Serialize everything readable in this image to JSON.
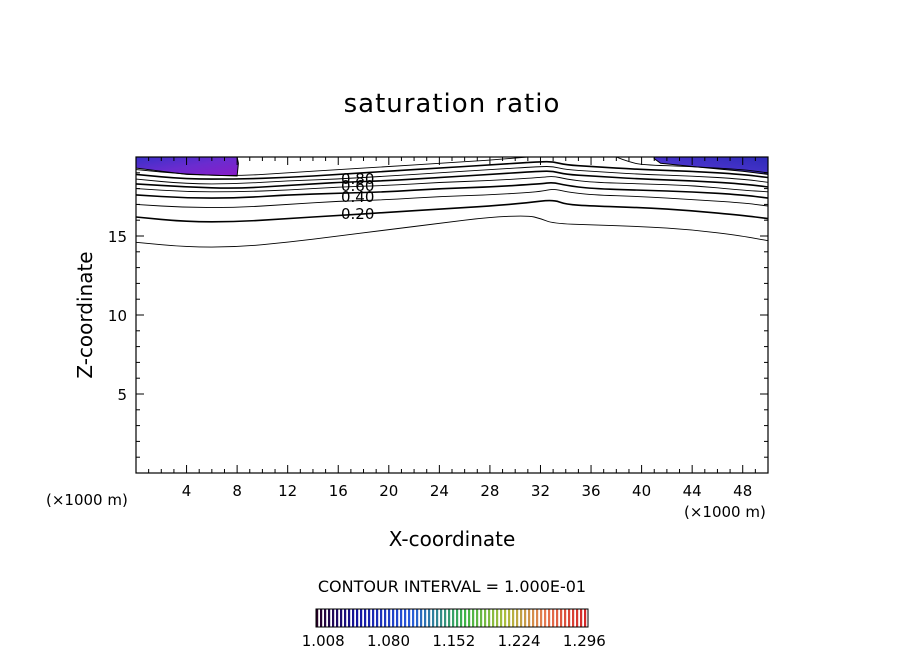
{
  "chart_data": {
    "type": "contour",
    "title": "saturation ratio",
    "xlabel": "X-coordinate",
    "ylabel": "Z-coordinate",
    "x_unit_left": "(×1000 m)",
    "x_unit_right": "(×1000 m)",
    "xlim": [
      0,
      50
    ],
    "ylim": [
      0,
      20
    ],
    "x_ticks": [
      4,
      8,
      12,
      16,
      20,
      24,
      28,
      32,
      36,
      40,
      44,
      48
    ],
    "y_ticks": [
      5,
      10,
      15
    ],
    "contour_interval_text": "CONTOUR INTERVAL = 1.000E-01",
    "contour_labels": [
      "0.80",
      "0.60",
      "0.40",
      "0.20"
    ],
    "contours": [
      {
        "level": 0.1,
        "points": [
          [
            0,
            14.6
          ],
          [
            4,
            14.3
          ],
          [
            8,
            14.3
          ],
          [
            12,
            14.6
          ],
          [
            16,
            15.0
          ],
          [
            20,
            15.4
          ],
          [
            24,
            15.8
          ],
          [
            28,
            16.2
          ],
          [
            31,
            16.3
          ],
          [
            32,
            16.1
          ],
          [
            33,
            15.8
          ],
          [
            36,
            15.7
          ],
          [
            40,
            15.6
          ],
          [
            44,
            15.4
          ],
          [
            48,
            15.0
          ],
          [
            50,
            14.7
          ]
        ]
      },
      {
        "level": 0.2,
        "points": [
          [
            0,
            16.2
          ],
          [
            4,
            15.9
          ],
          [
            8,
            15.9
          ],
          [
            12,
            16.1
          ],
          [
            16,
            16.3
          ],
          [
            20,
            16.5
          ],
          [
            24,
            16.7
          ],
          [
            28,
            16.9
          ],
          [
            31,
            17.1
          ],
          [
            33,
            17.3
          ],
          [
            34,
            17.0
          ],
          [
            36,
            16.9
          ],
          [
            40,
            16.8
          ],
          [
            44,
            16.6
          ],
          [
            48,
            16.3
          ],
          [
            50,
            16.1
          ]
        ]
      },
      {
        "level": 0.3,
        "points": [
          [
            0,
            17.0
          ],
          [
            4,
            16.8
          ],
          [
            8,
            16.8
          ],
          [
            12,
            17.0
          ],
          [
            16,
            17.2
          ],
          [
            20,
            17.3
          ],
          [
            24,
            17.5
          ],
          [
            28,
            17.6
          ],
          [
            32,
            17.8
          ],
          [
            33,
            18.0
          ],
          [
            34,
            17.8
          ],
          [
            36,
            17.6
          ],
          [
            40,
            17.5
          ],
          [
            44,
            17.3
          ],
          [
            48,
            17.1
          ],
          [
            50,
            16.9
          ]
        ]
      },
      {
        "level": 0.4,
        "points": [
          [
            0,
            17.6
          ],
          [
            4,
            17.4
          ],
          [
            8,
            17.4
          ],
          [
            12,
            17.6
          ],
          [
            16,
            17.7
          ],
          [
            20,
            17.8
          ],
          [
            24,
            18.0
          ],
          [
            28,
            18.1
          ],
          [
            32,
            18.3
          ],
          [
            33,
            18.4
          ],
          [
            34,
            18.2
          ],
          [
            36,
            18.0
          ],
          [
            40,
            17.9
          ],
          [
            44,
            17.8
          ],
          [
            48,
            17.6
          ],
          [
            50,
            17.4
          ]
        ]
      },
      {
        "level": 0.5,
        "points": [
          [
            0,
            18.0
          ],
          [
            4,
            17.8
          ],
          [
            8,
            17.8
          ],
          [
            12,
            17.9
          ],
          [
            16,
            18.1
          ],
          [
            20,
            18.2
          ],
          [
            24,
            18.4
          ],
          [
            28,
            18.5
          ],
          [
            32,
            18.7
          ],
          [
            33,
            18.8
          ],
          [
            34,
            18.6
          ],
          [
            36,
            18.4
          ],
          [
            40,
            18.3
          ],
          [
            44,
            18.2
          ],
          [
            48,
            17.9
          ],
          [
            50,
            17.8
          ]
        ]
      },
      {
        "level": 0.6,
        "points": [
          [
            0,
            18.3
          ],
          [
            4,
            18.1
          ],
          [
            8,
            18.0
          ],
          [
            12,
            18.2
          ],
          [
            16,
            18.4
          ],
          [
            20,
            18.5
          ],
          [
            24,
            18.7
          ],
          [
            28,
            18.9
          ],
          [
            32,
            19.1
          ],
          [
            33,
            19.1
          ],
          [
            34,
            18.9
          ],
          [
            36,
            18.8
          ],
          [
            40,
            18.6
          ],
          [
            44,
            18.5
          ],
          [
            48,
            18.3
          ],
          [
            50,
            18.1
          ]
        ]
      },
      {
        "level": 0.7,
        "points": [
          [
            0,
            18.6
          ],
          [
            4,
            18.3
          ],
          [
            8,
            18.3
          ],
          [
            12,
            18.5
          ],
          [
            16,
            18.6
          ],
          [
            20,
            18.8
          ],
          [
            24,
            19.0
          ],
          [
            28,
            19.2
          ],
          [
            32,
            19.4
          ],
          [
            33,
            19.4
          ],
          [
            34,
            19.2
          ],
          [
            36,
            19.1
          ],
          [
            40,
            18.9
          ],
          [
            44,
            18.8
          ],
          [
            48,
            18.6
          ],
          [
            50,
            18.4
          ]
        ]
      },
      {
        "level": 0.8,
        "points": [
          [
            0,
            18.9
          ],
          [
            4,
            18.6
          ],
          [
            8,
            18.6
          ],
          [
            12,
            18.7
          ],
          [
            16,
            18.9
          ],
          [
            20,
            19.1
          ],
          [
            24,
            19.3
          ],
          [
            28,
            19.5
          ],
          [
            32,
            19.7
          ],
          [
            33,
            19.7
          ],
          [
            34,
            19.5
          ],
          [
            36,
            19.4
          ],
          [
            40,
            19.2
          ],
          [
            44,
            19.1
          ],
          [
            48,
            18.9
          ],
          [
            50,
            18.7
          ]
        ]
      },
      {
        "level": 0.9,
        "points": [
          [
            0,
            19.2
          ],
          [
            4,
            18.9
          ],
          [
            8,
            18.8
          ],
          [
            12,
            19.0
          ],
          [
            16,
            19.2
          ],
          [
            20,
            19.4
          ],
          [
            24,
            19.6
          ],
          [
            28,
            19.8
          ],
          [
            31,
            20.0
          ]
        ]
      },
      {
        "level": 0.9,
        "points": [
          [
            38,
            20.0
          ],
          [
            39,
            19.7
          ],
          [
            40,
            19.5
          ],
          [
            44,
            19.4
          ],
          [
            48,
            19.2
          ],
          [
            50,
            19.0
          ]
        ]
      }
    ],
    "filled_regions": [
      {
        "points": [
          [
            0,
            20
          ],
          [
            8,
            20
          ],
          [
            8.1,
            19.6
          ],
          [
            8,
            18.8
          ],
          [
            4,
            18.9
          ],
          [
            0,
            19.3
          ]
        ]
      },
      {
        "points": [
          [
            41,
            20
          ],
          [
            50,
            20
          ],
          [
            50,
            18.9
          ],
          [
            48,
            19.1
          ],
          [
            44,
            19.4
          ],
          [
            41.5,
            19.6
          ],
          [
            41,
            19.9
          ]
        ]
      }
    ],
    "colorbar": {
      "ticks": [
        "1.008",
        "1.080",
        "1.152",
        "1.224",
        "1.296"
      ],
      "range": [
        1.0,
        1.3
      ]
    }
  }
}
